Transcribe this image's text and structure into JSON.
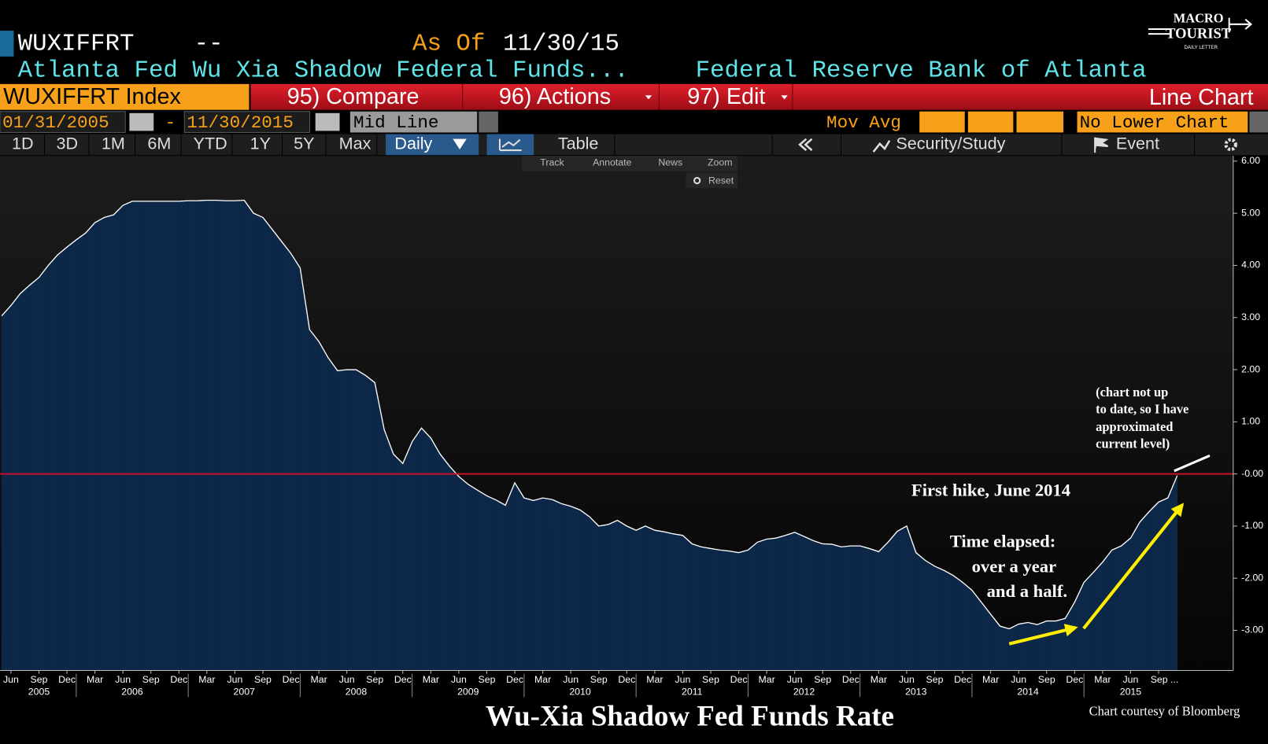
{
  "header": {
    "ticker": "WUXIFFRT",
    "dash": "--",
    "as_of_label": "As Of",
    "as_of": "11/30/15",
    "name": "Atlanta Fed Wu Xia Shadow Federal Funds...",
    "source": "Federal Reserve Bank of Atlanta"
  },
  "logo": {
    "line1": "MACRO",
    "line2": "TOURIST",
    "line3": "DAILY LETTER"
  },
  "menu": {
    "security": "WUXIFFRT Index",
    "items": [
      "95) Compare",
      "96) Actions",
      "97) Edit"
    ],
    "view": "Line Chart"
  },
  "controls": {
    "start": "01/31/2005",
    "sep": "-",
    "end": "11/30/2015",
    "mode": "Mid Line",
    "mov_avg": "Mov Avg",
    "lower": "No Lower Chart"
  },
  "periods": [
    "1D",
    "3D",
    "1M",
    "6M",
    "YTD",
    "1Y",
    "5Y",
    "Max"
  ],
  "frequency": "Daily",
  "tabs": [
    "Table",
    "Security/Study",
    "Event"
  ],
  "tools": [
    "Track",
    "Annotate",
    "News",
    "Zoom",
    "Reset"
  ],
  "chart_data": {
    "type": "area",
    "title": "Wu-Xia Shadow Fed Funds Rate",
    "source": "Chart courtesy of Bloomberg",
    "line_color": "#ffffff",
    "fill_color": "#0c2747",
    "x": [
      "2005-05",
      "2005-06",
      "2005-07",
      "2005-08",
      "2005-09",
      "2005-10",
      "2005-11",
      "2005-12",
      "2006-01",
      "2006-02",
      "2006-03",
      "2006-04",
      "2006-05",
      "2006-06",
      "2006-07",
      "2006-08",
      "2006-09",
      "2006-10",
      "2006-11",
      "2006-12",
      "2007-01",
      "2007-02",
      "2007-03",
      "2007-04",
      "2007-05",
      "2007-06",
      "2007-07",
      "2007-08",
      "2007-09",
      "2007-10",
      "2007-11",
      "2007-12",
      "2008-01",
      "2008-02",
      "2008-03",
      "2008-04",
      "2008-05",
      "2008-06",
      "2008-07",
      "2008-08",
      "2008-09",
      "2008-10",
      "2008-11",
      "2008-12",
      "2009-01",
      "2009-02",
      "2009-03",
      "2009-04",
      "2009-05",
      "2009-06",
      "2009-07",
      "2009-08",
      "2009-09",
      "2009-10",
      "2009-11",
      "2009-12",
      "2010-01",
      "2010-02",
      "2010-03",
      "2010-04",
      "2010-05",
      "2010-06",
      "2010-07",
      "2010-08",
      "2010-09",
      "2010-10",
      "2010-11",
      "2010-12",
      "2011-01",
      "2011-02",
      "2011-03",
      "2011-04",
      "2011-05",
      "2011-06",
      "2011-07",
      "2011-08",
      "2011-09",
      "2011-10",
      "2011-11",
      "2011-12",
      "2012-01",
      "2012-02",
      "2012-03",
      "2012-04",
      "2012-05",
      "2012-06",
      "2012-07",
      "2012-08",
      "2012-09",
      "2012-10",
      "2012-11",
      "2012-12",
      "2013-01",
      "2013-02",
      "2013-03",
      "2013-04",
      "2013-05",
      "2013-06",
      "2013-07",
      "2013-08",
      "2013-09",
      "2013-10",
      "2013-11",
      "2013-12",
      "2014-01",
      "2014-02",
      "2014-03",
      "2014-04",
      "2014-05",
      "2014-06",
      "2014-07",
      "2014-08",
      "2014-09",
      "2014-10",
      "2014-11",
      "2014-12",
      "2015-01",
      "2015-02",
      "2015-03",
      "2015-04",
      "2015-05",
      "2015-06",
      "2015-07",
      "2015-08",
      "2015-09",
      "2015-10",
      "2015-11"
    ],
    "values": [
      3.03,
      3.23,
      3.46,
      3.62,
      3.77,
      4.0,
      4.2,
      4.35,
      4.49,
      4.62,
      4.82,
      4.92,
      4.97,
      5.15,
      5.23,
      5.23,
      5.23,
      5.23,
      5.23,
      5.23,
      5.24,
      5.24,
      5.25,
      5.25,
      5.24,
      5.24,
      5.25,
      5.0,
      4.92,
      4.69,
      4.46,
      4.23,
      3.95,
      2.77,
      2.54,
      2.23,
      1.98,
      2.0,
      2.0,
      1.89,
      1.75,
      0.85,
      0.38,
      0.2,
      0.62,
      0.88,
      0.69,
      0.38,
      0.15,
      -0.05,
      -0.2,
      -0.31,
      -0.42,
      -0.5,
      -0.6,
      -0.17,
      -0.46,
      -0.51,
      -0.46,
      -0.49,
      -0.57,
      -0.62,
      -0.69,
      -0.82,
      -1.0,
      -0.97,
      -0.89,
      -1.0,
      -1.08,
      -1.0,
      -1.08,
      -1.11,
      -1.15,
      -1.18,
      -1.34,
      -1.4,
      -1.43,
      -1.46,
      -1.48,
      -1.51,
      -1.46,
      -1.31,
      -1.25,
      -1.23,
      -1.18,
      -1.12,
      -1.2,
      -1.28,
      -1.34,
      -1.35,
      -1.4,
      -1.38,
      -1.38,
      -1.43,
      -1.49,
      -1.31,
      -1.1,
      -1.0,
      -1.51,
      -1.66,
      -1.77,
      -1.85,
      -1.95,
      -2.08,
      -2.23,
      -2.46,
      -2.69,
      -2.92,
      -2.97,
      -2.88,
      -2.85,
      -2.89,
      -2.82,
      -2.82,
      -2.77,
      -2.46,
      -2.08,
      -1.89,
      -1.69,
      -1.46,
      -1.38,
      -1.23,
      -0.92,
      -0.72,
      -0.54,
      -0.46,
      -0.03
    ],
    "xlim": [
      "2005-05",
      "2016-05"
    ],
    "xticks": [
      {
        "value": "2005-06",
        "label": "Jun"
      },
      {
        "value": "2005-09",
        "label": "Sep"
      },
      {
        "value": "2005-12",
        "label": "Dec"
      },
      {
        "value": "2006-03",
        "label": "Mar"
      },
      {
        "value": "2006-06",
        "label": "Jun"
      },
      {
        "value": "2006-09",
        "label": "Sep"
      },
      {
        "value": "2006-12",
        "label": "Dec"
      },
      {
        "value": "2007-03",
        "label": "Mar"
      },
      {
        "value": "2007-06",
        "label": "Jun"
      },
      {
        "value": "2007-09",
        "label": "Sep"
      },
      {
        "value": "2007-12",
        "label": "Dec"
      },
      {
        "value": "2008-03",
        "label": "Mar"
      },
      {
        "value": "2008-06",
        "label": "Jun"
      },
      {
        "value": "2008-09",
        "label": "Sep"
      },
      {
        "value": "2008-12",
        "label": "Dec"
      },
      {
        "value": "2009-03",
        "label": "Mar"
      },
      {
        "value": "2009-06",
        "label": "Jun"
      },
      {
        "value": "2009-09",
        "label": "Sep"
      },
      {
        "value": "2009-12",
        "label": "Dec"
      },
      {
        "value": "2010-03",
        "label": "Mar"
      },
      {
        "value": "2010-06",
        "label": "Jun"
      },
      {
        "value": "2010-09",
        "label": "Sep"
      },
      {
        "value": "2010-12",
        "label": "Dec"
      },
      {
        "value": "2011-03",
        "label": "Mar"
      },
      {
        "value": "2011-06",
        "label": "Jun"
      },
      {
        "value": "2011-09",
        "label": "Sep"
      },
      {
        "value": "2011-12",
        "label": "Dec"
      },
      {
        "value": "2012-03",
        "label": "Mar"
      },
      {
        "value": "2012-06",
        "label": "Jun"
      },
      {
        "value": "2012-09",
        "label": "Sep"
      },
      {
        "value": "2012-12",
        "label": "Dec"
      },
      {
        "value": "2013-03",
        "label": "Mar"
      },
      {
        "value": "2013-06",
        "label": "Jun"
      },
      {
        "value": "2013-09",
        "label": "Sep"
      },
      {
        "value": "2013-12",
        "label": "Dec"
      },
      {
        "value": "2014-03",
        "label": "Mar"
      },
      {
        "value": "2014-06",
        "label": "Jun"
      },
      {
        "value": "2014-09",
        "label": "Sep"
      },
      {
        "value": "2014-12",
        "label": "Dec"
      },
      {
        "value": "2015-03",
        "label": "Mar"
      },
      {
        "value": "2015-06",
        "label": "Jun"
      },
      {
        "value": "2015-09",
        "label": "Sep ..."
      }
    ],
    "year_ticks": [
      2005,
      2006,
      2007,
      2008,
      2009,
      2010,
      2011,
      2012,
      2013,
      2014,
      2015
    ],
    "ylim": [
      -3.77,
      6.1
    ],
    "yticks": [
      {
        "value": -3,
        "label": "-3.00"
      },
      {
        "value": -2,
        "label": "-2.00"
      },
      {
        "value": -1,
        "label": "-1.00"
      },
      {
        "value": 0,
        "label": "-0.00"
      },
      {
        "value": 1,
        "label": "1.00"
      },
      {
        "value": 2,
        "label": "2.00"
      },
      {
        "value": 3,
        "label": "3.00"
      },
      {
        "value": 4,
        "label": "4.00"
      },
      {
        "value": 5,
        "label": "5.00"
      },
      {
        "value": 6,
        "label": "6.00"
      }
    ],
    "hline": {
      "value": 0,
      "color": "#c8102e"
    },
    "annotations": {
      "note": [
        "(chart not up",
        "to date, so I have",
        "approximated",
        "current level)"
      ],
      "hike": "First hike, June 2014",
      "elapsed": [
        "Time elapsed:",
        "over a year",
        "and a half."
      ]
    }
  }
}
